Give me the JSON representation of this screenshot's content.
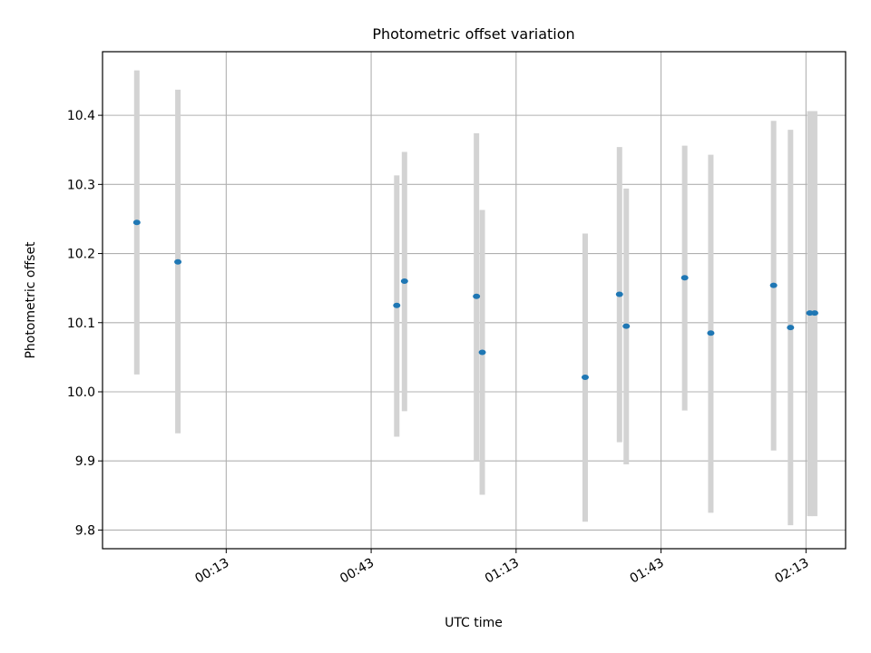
{
  "chart_data": {
    "type": "scatter",
    "title": "Photometric offset variation",
    "xlabel": "UTC time",
    "ylabel": "Photometric offset",
    "x_tick_labels": [
      "00:13",
      "00:43",
      "01:13",
      "01:43",
      "02:13"
    ],
    "x_ticks_minutes": [
      13,
      43,
      73,
      103,
      133
    ],
    "xlim_minutes": [
      -12.6,
      141.2
    ],
    "ylim": [
      9.773,
      10.492
    ],
    "y_ticks": [
      9.8,
      9.9,
      10.0,
      10.1,
      10.2,
      10.3,
      10.4
    ],
    "y_tick_labels": [
      "9.8",
      "9.9",
      "10.0",
      "10.1",
      "10.2",
      "10.3",
      "10.4"
    ],
    "grid": true,
    "colors": {
      "point": "#1f77b4",
      "errorbar": "#d3d3d3",
      "grid": "#b0b0b0"
    },
    "series": [
      {
        "x_minutes": [
          -5.5,
          3.0,
          48.3,
          49.9,
          64.8,
          66.0,
          87.3,
          94.4,
          95.8,
          107.9,
          113.3,
          126.3,
          129.8,
          133.8,
          134.8
        ],
        "y": [
          10.245,
          10.188,
          10.125,
          10.16,
          10.138,
          10.057,
          10.021,
          10.141,
          10.095,
          10.165,
          10.085,
          10.154,
          10.093,
          10.114,
          10.114
        ],
        "y_low": [
          10.025,
          9.94,
          9.935,
          9.972,
          9.9,
          9.851,
          9.812,
          9.927,
          9.895,
          9.973,
          9.825,
          9.915,
          9.807,
          9.82,
          9.82
        ],
        "y_high": [
          10.465,
          10.437,
          10.313,
          10.347,
          10.374,
          10.263,
          10.229,
          10.354,
          10.294,
          10.356,
          10.343,
          10.392,
          10.379,
          10.406,
          10.406
        ]
      }
    ]
  }
}
